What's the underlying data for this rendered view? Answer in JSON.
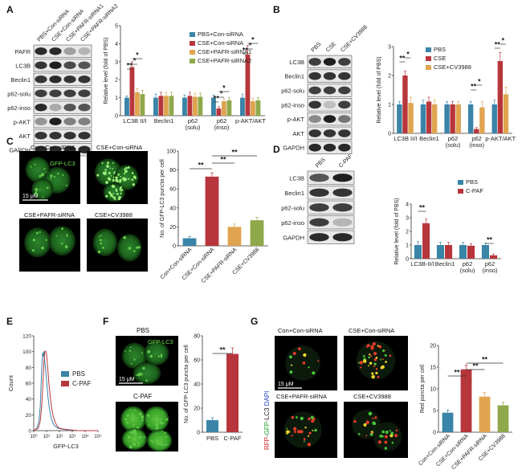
{
  "panels": {
    "A": {
      "letter": "A",
      "blot_columns": [
        "PBS+Con-siRNA",
        "CSE+Con-siRNA",
        "CSE+PAFR-siRNA1",
        "CSE+PAFR-siRNA2"
      ],
      "blot_rows": [
        "PAFR",
        "LC3B",
        "Beclin1",
        "p62-solu",
        "p62-inso",
        "p-AKT",
        "AKT",
        "GAPDH"
      ],
      "chart_data": {
        "type": "bar",
        "ylabel": "Relative level (fold of PBS)",
        "ylim": [
          0,
          5
        ],
        "yticks": [
          "0",
          "1",
          "2",
          "3",
          "4",
          "5"
        ],
        "categories": [
          "LC3B II/I",
          "Beclin1",
          "p62\n(solu)",
          "p62\n(inso)",
          "p-AKT/AKT"
        ],
        "series": [
          {
            "name": "PBS+Con-siRNA",
            "values": [
              1.0,
              1.0,
              1.0,
              1.0,
              1.0
            ],
            "errors": [
              0.1,
              0.2,
              0.15,
              0.15,
              0.2
            ]
          },
          {
            "name": "CSE+Con-siRNA",
            "values": [
              2.7,
              1.1,
              1.1,
              0.4,
              3.4
            ],
            "errors": [
              0.3,
              0.2,
              0.2,
              0.1,
              0.5
            ]
          },
          {
            "name": "CSE+PAFR-siRNA1",
            "values": [
              1.3,
              1.1,
              1.05,
              0.8,
              0.8
            ],
            "errors": [
              0.2,
              0.2,
              0.2,
              0.15,
              0.15
            ]
          },
          {
            "name": "CSE+PAFR-siRNA2",
            "values": [
              1.2,
              1.1,
              1.05,
              0.85,
              0.85
            ],
            "errors": [
              0.2,
              0.2,
              0.2,
              0.15,
              0.15
            ]
          }
        ],
        "colors": [
          "#3a84a8",
          "#b7363c",
          "#e0a450",
          "#8fa84a"
        ],
        "significance": [
          "**",
          "*",
          "*",
          "**",
          "*",
          "*",
          "**",
          "*",
          "*"
        ]
      }
    },
    "B": {
      "letter": "B",
      "blot_columns": [
        "PBS",
        "CSE",
        "CSE+CV3988"
      ],
      "blot_rows": [
        "LC3B",
        "Beclin1",
        "p62-solu",
        "p62-inso",
        "p-AKT",
        "AKT",
        "GAPDH"
      ],
      "chart_data": {
        "type": "bar",
        "ylabel": "Relative level (fold of PBS)",
        "ylim": [
          0,
          3
        ],
        "yticks": [
          "0",
          "1",
          "2",
          "3"
        ],
        "categories": [
          "LC3B II/I",
          "Beclin1",
          "p62\n(solu)",
          "p62\n(inso)",
          "p-AKT/AKT"
        ],
        "series": [
          {
            "name": "PBS",
            "values": [
              1.0,
              1.0,
              1.0,
              1.0,
              1.0
            ],
            "errors": [
              0.1,
              0.15,
              0.1,
              0.1,
              0.15
            ]
          },
          {
            "name": "CSE",
            "values": [
              2.0,
              1.1,
              1.0,
              0.15,
              2.5
            ],
            "errors": [
              0.15,
              0.15,
              0.1,
              0.05,
              0.3
            ]
          },
          {
            "name": "CSE+CV3988",
            "values": [
              1.05,
              1.0,
              1.0,
              0.9,
              1.35
            ],
            "errors": [
              0.2,
              0.15,
              0.1,
              0.2,
              0.25
            ]
          }
        ],
        "colors": [
          "#3a84a8",
          "#b7363c",
          "#e0a450"
        ],
        "significance": [
          "**",
          "*",
          "**",
          "*",
          "**",
          "*"
        ]
      }
    },
    "C": {
      "letter": "C",
      "image_labels": [
        "Con+Con-siRNA",
        "CSE+Con-siRNA",
        "CSE+PAFR-siRNA",
        "CSE+CV3988"
      ],
      "overlay_label": "GFP-LC3",
      "scale_label": "15 μM",
      "chart_data": {
        "type": "bar",
        "ylabel": "No. of GFP-LC3 puncta per cell",
        "ylim": [
          0,
          100
        ],
        "yticks": [
          "0",
          "20",
          "40",
          "60",
          "80",
          "100"
        ],
        "categories": [
          "Con+Con-siRNA",
          "CSE+Con-siRNA",
          "CSE+PAFR-siRNA",
          "CSE+CV3988"
        ],
        "values": [
          8,
          73,
          20,
          27
        ],
        "errors": [
          2,
          4,
          3,
          3
        ],
        "colors": [
          "#3a84a8",
          "#b7363c",
          "#e0a450",
          "#8fa84a"
        ],
        "significance": [
          "**",
          "**",
          "**"
        ]
      }
    },
    "D": {
      "letter": "D",
      "blot_columns": [
        "PBS",
        "C-PAF"
      ],
      "blot_rows": [
        "LC3B",
        "Beclin1",
        "p62-solu",
        "p62-inso",
        "GAPDH"
      ],
      "chart_data": {
        "type": "bar",
        "ylabel": "Relative level (fold of PBS)",
        "ylim": [
          0,
          4
        ],
        "yticks": [
          "0",
          "1",
          "2",
          "3",
          "4"
        ],
        "categories": [
          "LC3B-II/I",
          "Beclin1",
          "p62\n(solu)",
          "p62\n(inso)"
        ],
        "series": [
          {
            "name": "PBS",
            "values": [
              1.0,
              1.0,
              1.0,
              1.0
            ],
            "errors": [
              0.25,
              0.2,
              0.2,
              0.15
            ]
          },
          {
            "name": "C-PAF",
            "values": [
              2.6,
              1.0,
              0.95,
              0.25
            ],
            "errors": [
              0.3,
              0.2,
              0.15,
              0.1
            ]
          }
        ],
        "colors": [
          "#3a84a8",
          "#b7363c"
        ],
        "significance": [
          "**",
          "**"
        ]
      }
    },
    "E": {
      "letter": "E",
      "chart_data": {
        "type": "line",
        "xlabel": "GFP-LC3",
        "ylabel": "Count",
        "ylim": [
          0,
          120
        ],
        "yticks": [
          "0",
          "20",
          "40",
          "60",
          "80",
          "100",
          "120"
        ],
        "xticks": [
          "10⁰",
          "10¹",
          "10²",
          "10³",
          "10⁴",
          "10⁵"
        ],
        "series": [
          {
            "name": "PBS",
            "color": "#3a84a8",
            "x": [
              1,
              1.8,
              2.5,
              3.2,
              3.8,
              4.4,
              5,
              5.6,
              6.3,
              7,
              8,
              9.5,
              11,
              13,
              16,
              20,
              26,
              35,
              50,
              80,
              150,
              400,
              2000,
              100000
            ],
            "y": [
              0,
              3,
              12,
              30,
              62,
              88,
              100,
              94,
              100,
              92,
              80,
              68,
              55,
              42,
              30,
              20,
              13,
              8,
              5,
              3,
              2,
              1,
              0,
              0
            ]
          },
          {
            "name": "C-PAF",
            "color": "#b7363c",
            "x": [
              1,
              2.2,
              3.2,
              4.2,
              5.2,
              6.3,
              7.4,
              8.5,
              10,
              11.5,
              13,
              15,
              17.5,
              21,
              26,
              33,
              45,
              65,
              100,
              200,
              600,
              3000,
              100000
            ],
            "y": [
              0,
              3,
              12,
              32,
              62,
              88,
              100,
              102,
              96,
              86,
              74,
              62,
              50,
              38,
              27,
              18,
              11,
              6,
              3,
              2,
              1,
              0,
              0
            ]
          }
        ]
      }
    },
    "F": {
      "letter": "F",
      "image_labels": [
        "PBS",
        "C-PAF"
      ],
      "overlay_label": "GFP-LC3",
      "scale_label": "15 μM",
      "chart_data": {
        "type": "bar",
        "ylabel": "No. of GFP-LC3 puncta per cell",
        "ylim": [
          0,
          80
        ],
        "yticks": [
          "0",
          "20",
          "40",
          "60",
          "80"
        ],
        "categories": [
          "PBS",
          "C-PAF"
        ],
        "values": [
          10,
          65
        ],
        "errors": [
          2,
          5
        ],
        "colors": [
          "#3a84a8",
          "#b7363c"
        ],
        "significance": [
          "**"
        ]
      }
    },
    "G": {
      "letter": "G",
      "image_labels": [
        "Con+Con-siRNA",
        "CSE+Con-siRNA",
        "CSE+PAFR-siRNA",
        "CSE+CV3988"
      ],
      "scale_label": "15 μM",
      "side_label_parts": [
        "RFP",
        "-",
        "GFP",
        "-",
        "LC3",
        " ",
        "DAPI"
      ],
      "side_label_colors": [
        "#d42020",
        "#222222",
        "#1e9e2a",
        "#222222",
        "#222222",
        "#222222",
        "#1f3fbf"
      ],
      "chart_data": {
        "type": "bar",
        "ylabel": "Red puncta per cell",
        "ylim": [
          0,
          20
        ],
        "yticks": [
          "0",
          "5",
          "10",
          "15",
          "20"
        ],
        "categories": [
          "Con+Con-siRNA",
          "CSE+Con-siRNA",
          "CSE+PAFR-siRNA",
          "CSE+CV3988"
        ],
        "values": [
          4.5,
          14.5,
          8.2,
          6.2
        ],
        "errors": [
          0.6,
          1.0,
          1.0,
          0.7
        ],
        "colors": [
          "#3a84a8",
          "#b7363c",
          "#e0a450",
          "#8fa84a"
        ],
        "significance": [
          "**",
          "**",
          "**"
        ]
      }
    }
  }
}
